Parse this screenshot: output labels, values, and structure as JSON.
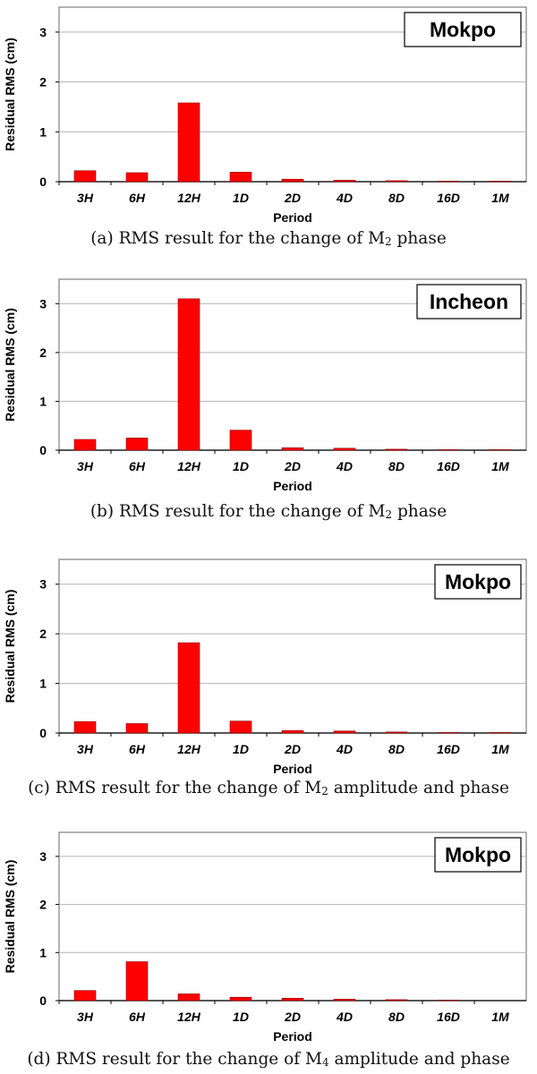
{
  "chart_data": [
    {
      "type": "bar",
      "station": "Mokpo",
      "categories": [
        "3H",
        "6H",
        "12H",
        "1D",
        "2D",
        "4D",
        "8D",
        "16D",
        "1M"
      ],
      "values": [
        0.22,
        0.18,
        1.58,
        0.19,
        0.05,
        0.03,
        0.02,
        0.01,
        0.01
      ],
      "xlabel": "Period",
      "ylabel": "Residual RMS (cm)",
      "ylim": [
        0,
        3.5
      ],
      "yticks": [
        "0",
        "1",
        "2",
        "3"
      ],
      "grid": true,
      "bar_color": "#ff0000",
      "caption": {
        "pre": "(a) RMS result for the change of M",
        "sub": "2",
        "post": " phase"
      }
    },
    {
      "type": "bar",
      "station": "Incheon",
      "categories": [
        "3H",
        "6H",
        "12H",
        "1D",
        "2D",
        "4D",
        "8D",
        "16D",
        "1M"
      ],
      "values": [
        0.22,
        0.25,
        3.1,
        0.41,
        0.05,
        0.04,
        0.02,
        0.01,
        0.01
      ],
      "xlabel": "Period",
      "ylabel": "Residual RMS (cm)",
      "ylim": [
        0,
        3.5
      ],
      "yticks": [
        "0",
        "1",
        "2",
        "3"
      ],
      "grid": true,
      "bar_color": "#ff0000",
      "caption": {
        "pre": "(b) RMS result for the change of M",
        "sub": "2",
        "post": " phase"
      }
    },
    {
      "type": "bar",
      "station": "Mokpo",
      "categories": [
        "3H",
        "6H",
        "12H",
        "1D",
        "2D",
        "4D",
        "8D",
        "16D",
        "1M"
      ],
      "values": [
        0.23,
        0.19,
        1.82,
        0.24,
        0.05,
        0.04,
        0.02,
        0.01,
        0.01
      ],
      "xlabel": "Period",
      "ylabel": "Residual RMS (cm)",
      "ylim": [
        0,
        3.5
      ],
      "yticks": [
        "0",
        "1",
        "2",
        "3"
      ],
      "grid": true,
      "bar_color": "#ff0000",
      "caption": {
        "pre": "(c) RMS result for the change of M",
        "sub": "2",
        "post": " amplitude and phase"
      }
    },
    {
      "type": "bar",
      "station": "Mokpo",
      "categories": [
        "3H",
        "6H",
        "12H",
        "1D",
        "2D",
        "4D",
        "8D",
        "16D",
        "1M"
      ],
      "values": [
        0.21,
        0.81,
        0.14,
        0.07,
        0.05,
        0.03,
        0.02,
        0.01,
        0.0
      ],
      "xlabel": "Period",
      "ylabel": "Residual RMS (cm)",
      "ylim": [
        0,
        3.5
      ],
      "yticks": [
        "0",
        "1",
        "2",
        "3"
      ],
      "grid": true,
      "bar_color": "#ff0000",
      "caption": {
        "pre": "(d) RMS result for the change of M",
        "sub": "4",
        "post": " amplitude and phase"
      }
    }
  ]
}
